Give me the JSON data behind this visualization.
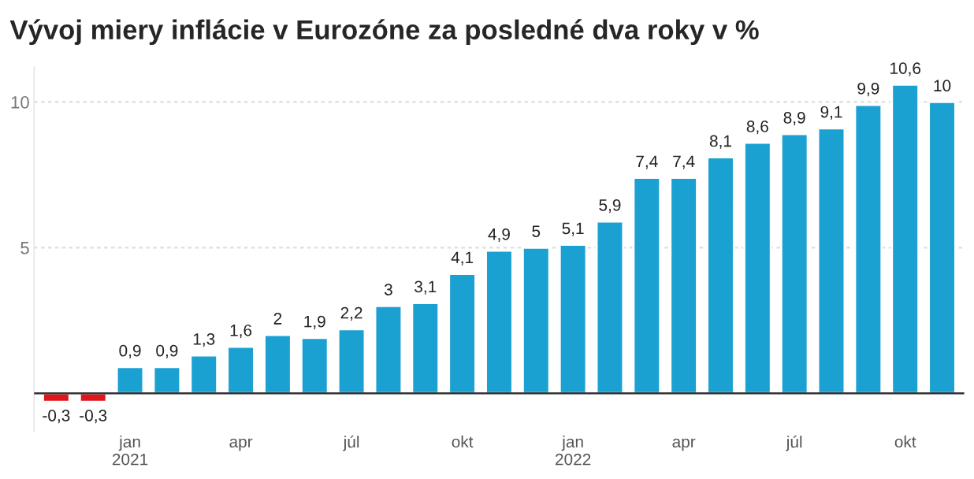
{
  "chart_data": {
    "type": "bar",
    "title": "Vývoj miery inflácie v Eurozóne za posledné dva roky v %",
    "categories": [
      null,
      null,
      "jan\n2021",
      null,
      null,
      "apr",
      null,
      null,
      "júl",
      null,
      null,
      "okt",
      null,
      null,
      "jan\n2022",
      null,
      null,
      "apr",
      null,
      null,
      "júl",
      null,
      null,
      "okt",
      null
    ],
    "values": [
      -0.3,
      -0.3,
      0.9,
      0.9,
      1.3,
      1.6,
      2,
      1.9,
      2.2,
      3,
      3.1,
      4.1,
      4.9,
      5,
      5.1,
      5.9,
      7.4,
      7.4,
      8.1,
      8.6,
      8.9,
      9.1,
      9.9,
      10.6,
      10
    ],
    "value_labels": [
      "-0,3",
      "-0,3",
      "0,9",
      "0,9",
      "1,3",
      "1,6",
      "2",
      "1,9",
      "2,2",
      "3",
      "3,1",
      "4,1",
      "4,9",
      "5",
      "5,1",
      "5,9",
      "7,4",
      "7,4",
      "8,1",
      "8,6",
      "8,9",
      "9,1",
      "9,9",
      "10,6",
      "10"
    ],
    "colors": [
      "#e0161b",
      "#e0161b",
      "#1aa1d2",
      "#1aa1d2",
      "#1aa1d2",
      "#1aa1d2",
      "#1aa1d2",
      "#1aa1d2",
      "#1aa1d2",
      "#1aa1d2",
      "#1aa1d2",
      "#1aa1d2",
      "#1aa1d2",
      "#1aa1d2",
      "#1aa1d2",
      "#1aa1d2",
      "#1aa1d2",
      "#1aa1d2",
      "#1aa1d2",
      "#1aa1d2",
      "#1aa1d2",
      "#1aa1d2",
      "#1aa1d2",
      "#1aa1d2",
      "#1aa1d2"
    ],
    "ylim": [
      -1.3,
      11.2
    ],
    "yticks": [
      {
        "value": 0,
        "label": null
      },
      5,
      10
    ],
    "grid": "y"
  }
}
